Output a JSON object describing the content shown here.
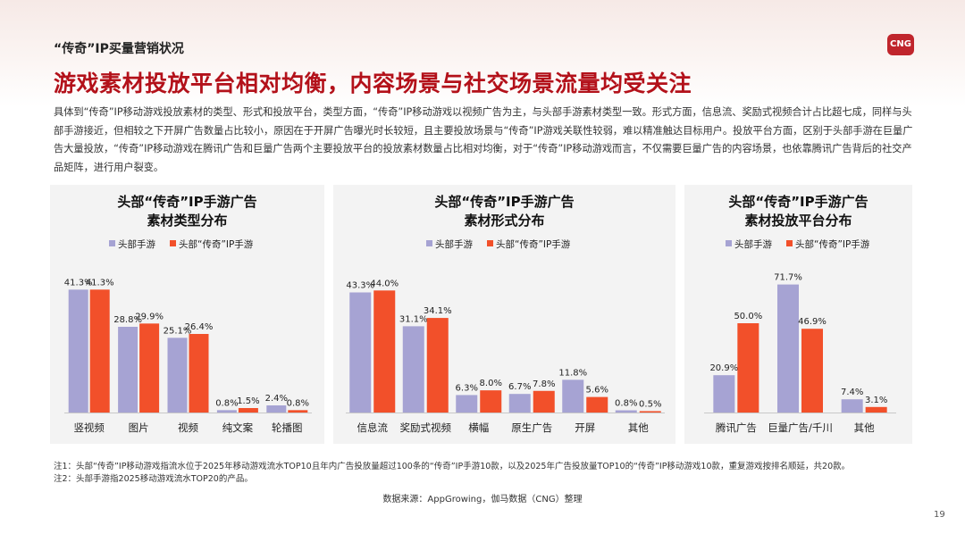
{
  "header": {
    "section_title": "“传奇”IP买量营销状况",
    "logo_text": "CNG",
    "headline": "游戏素材投放平台相对均衡，内容场景与社交场景流量均受关注",
    "intro": "具体到“传奇”IP移动游戏投放素材的类型、形式和投放平台，类型方面，“传奇”IP移动游戏以视频广告为主，与头部手游素材类型一致。形式方面，信息流、奖励式视频合计占比超七成，同样与头部手游接近，但相较之下开屏广告数量占比较小，原因在于开屏广告曝光时长较短，且主要投放场景与“传奇”IP游戏关联性较弱，难以精准触达目标用户。投放平台方面，区别于头部手游在巨量广告大量投放，“传奇”IP移动游戏在腾讯广告和巨量广告两个主要投放平台的投放素材数量占比相对均衡，对于“传奇”IP移动游戏而言，不仅需要巨量广告的内容场景，也依靠腾讯广告背后的社交产品矩阵，进行用户裂变。"
  },
  "colors": {
    "series_a": "#a6a3d3",
    "series_b": "#f2502a",
    "title_red": "#b3111a",
    "panel_bg": "#f3f3f3"
  },
  "chart_data": [
    {
      "type": "bar",
      "title_line1": "头部“传奇”IP手游广告",
      "title_line2": "素材类型分布",
      "categories": [
        "竖视频",
        "图片",
        "视频",
        "纯文案",
        "轮播图"
      ],
      "series": [
        {
          "name": "头部手游",
          "values": [
            41.3,
            28.8,
            25.1,
            0.8,
            2.4
          ],
          "labels": [
            "41.3%",
            "28.8%",
            "25.1%",
            "0.8%",
            "2.4%"
          ]
        },
        {
          "name": "头部“传奇”IP手游",
          "values": [
            41.3,
            29.9,
            26.4,
            1.5,
            0.8
          ],
          "labels": [
            "41.3%",
            "29.9%",
            "26.4%",
            "1.5%",
            "0.8%"
          ]
        }
      ],
      "ylim": [
        0,
        45
      ]
    },
    {
      "type": "bar",
      "title_line1": "头部“传奇”IP手游广告",
      "title_line2": "素材形式分布",
      "categories": [
        "信息流",
        "奖励式视频",
        "横幅",
        "原生广告",
        "开屏",
        "其他"
      ],
      "series": [
        {
          "name": "头部手游",
          "values": [
            43.3,
            31.1,
            6.3,
            6.7,
            11.8,
            0.8
          ],
          "labels": [
            "43.3%",
            "31.1%",
            "6.3%",
            "6.7%",
            "11.8%",
            "0.8%"
          ]
        },
        {
          "name": "头部“传奇”IP手游",
          "values": [
            44.0,
            34.1,
            8.0,
            7.8,
            5.6,
            0.5
          ],
          "labels": [
            "44.0%",
            "34.1%",
            "8.0%",
            "7.8%",
            "5.6%",
            "0.5%"
          ]
        }
      ],
      "ylim": [
        0,
        47
      ]
    },
    {
      "type": "bar",
      "title_line1": "头部“传奇”IP手游广告",
      "title_line2": "素材投放平台分布",
      "categories": [
        "腾讯广告",
        "巨量广告/千川",
        "其他"
      ],
      "series": [
        {
          "name": "头部手游",
          "values": [
            20.9,
            71.7,
            7.4
          ],
          "labels": [
            "20.9%",
            "71.7%",
            "7.4%"
          ]
        },
        {
          "name": "头部“传奇”IP手游",
          "values": [
            50.0,
            46.9,
            3.1
          ],
          "labels": [
            "50.0%",
            "46.9%",
            "3.1%"
          ]
        }
      ],
      "ylim": [
        0,
        73
      ]
    }
  ],
  "notes": {
    "note1": "注1：头部“传奇”IP移动游戏指流水位于2025年移动游戏流水TOP10且年内广告投放量超过100条的“传奇”IP手游10款，以及2025年广告投放量TOP10的“传奇”IP移动游戏10款，重复游戏按排名顺延，共20款。",
    "note2": "注2：头部手游指2025移动游戏流水TOP20的产品。",
    "source": "数据来源：AppGrowing，伽马数据（CNG）整理",
    "page_number": "19"
  }
}
